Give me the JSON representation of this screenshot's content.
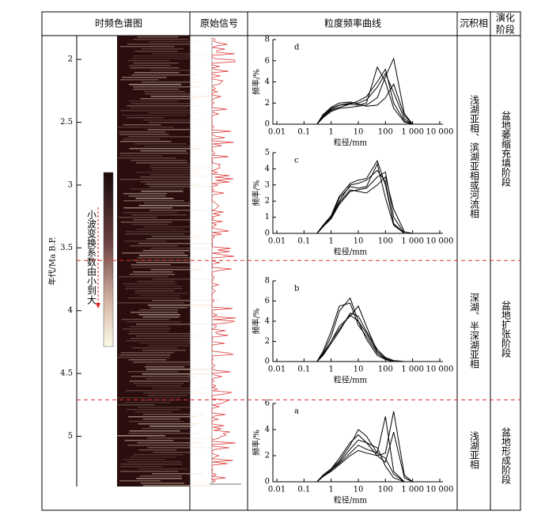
{
  "header": {
    "spectrogram": "时频色谱图",
    "signal": "原始信号",
    "grain": "粒度频率曲线",
    "facies": "沉积相",
    "stage": [
      "演化",
      "阶段"
    ]
  },
  "age_axis": {
    "label": "年代/Ma B.P.",
    "ylim": [
      1.81,
      5.4
    ],
    "yticks": [
      2,
      2.5,
      3,
      3.5,
      4,
      4.5,
      5
    ],
    "boundaries": [
      3.6,
      4.71
    ]
  },
  "colorbar_label": "小波变换系数由小到大",
  "facies": [
    "浅湖亚相、滨湖亚相或河流相",
    "深湖、半深湖亚相",
    "浅湖亚相"
  ],
  "stages": [
    "盆地萎缩充填阶段",
    "盆地扩张阶段",
    "盆地形成阶段"
  ],
  "chart_data": [
    {
      "type": "line",
      "label": "d",
      "xlabel": "粒径/mm",
      "ylabel": "频率/%",
      "log_x": true,
      "xlim": [
        0.01,
        10000
      ],
      "xticks": [
        0.01,
        0.1,
        1,
        10,
        100,
        {
          "value": 1000,
          "label": "1 000"
        },
        {
          "value": 10000,
          "label": "10 000"
        }
      ],
      "ylim": [
        0,
        8
      ],
      "yticks": [
        0,
        2,
        4,
        6,
        8
      ],
      "x": [
        0.3,
        0.5,
        1,
        2,
        5,
        10,
        20,
        50,
        100,
        200,
        500,
        1000
      ],
      "series": [
        {
          "color": "#000000",
          "values": [
            0,
            0.8,
            1.5,
            1.8,
            1.9,
            1.8,
            2.0,
            5.4,
            4.0,
            1.5,
            0.2,
            0
          ]
        },
        {
          "color": "#000000",
          "values": [
            0,
            0.7,
            1.3,
            1.6,
            1.9,
            2.2,
            2.6,
            4.0,
            5.2,
            2.0,
            0.3,
            0
          ]
        },
        {
          "color": "#000000",
          "values": [
            0,
            0.6,
            1.2,
            1.5,
            1.6,
            1.7,
            1.8,
            2.5,
            4.5,
            6.2,
            1.0,
            0
          ]
        },
        {
          "color": "#000000",
          "values": [
            0,
            0.9,
            1.6,
            2.0,
            2.1,
            1.9,
            1.7,
            1.8,
            2.5,
            3.8,
            0.8,
            0
          ]
        },
        {
          "color": "#000000",
          "values": [
            0,
            0.8,
            1.4,
            1.8,
            2.0,
            2.0,
            2.3,
            3.5,
            4.8,
            3.0,
            0.5,
            0
          ]
        }
      ]
    },
    {
      "type": "line",
      "label": "c",
      "xlabel": "粒径/mm",
      "ylabel": "频率/%",
      "log_x": true,
      "xlim": [
        0.01,
        10000
      ],
      "xticks": [
        0.01,
        0.1,
        1,
        10,
        100,
        {
          "value": 1000,
          "label": "1 000"
        },
        {
          "value": 10000,
          "label": "10 000"
        }
      ],
      "ylim": [
        0,
        5
      ],
      "yticks": [
        0,
        1,
        2,
        3,
        4,
        5
      ],
      "x": [
        0.3,
        0.5,
        1,
        2,
        5,
        10,
        20,
        50,
        100,
        200,
        500,
        1000
      ],
      "series": [
        {
          "color": "#000000",
          "values": [
            0,
            0.5,
            1.0,
            2.2,
            2.9,
            2.8,
            2.9,
            4.3,
            2.2,
            0.5,
            0,
            0
          ]
        },
        {
          "color": "#000000",
          "values": [
            0,
            0.4,
            1.0,
            2.0,
            3.0,
            3.1,
            3.3,
            3.9,
            3.2,
            0.6,
            0,
            0
          ]
        },
        {
          "color": "#000000",
          "values": [
            0,
            0.4,
            0.9,
            1.8,
            2.6,
            2.7,
            2.8,
            3.5,
            3.8,
            1.0,
            0,
            0
          ]
        },
        {
          "color": "#000000",
          "values": [
            0,
            0.5,
            1.1,
            2.3,
            3.1,
            3.3,
            3.4,
            4.5,
            3.0,
            0.6,
            0,
            0
          ]
        },
        {
          "color": "#000000",
          "values": [
            0,
            0.4,
            1.0,
            1.9,
            2.7,
            2.6,
            2.5,
            3.0,
            3.5,
            1.5,
            0.1,
            0
          ]
        }
      ]
    },
    {
      "type": "line",
      "label": "b",
      "xlabel": "粒径/mm",
      "ylabel": "频率/%",
      "log_x": true,
      "xlim": [
        0.01,
        10000
      ],
      "xticks": [
        0.01,
        0.1,
        1,
        10,
        100,
        {
          "value": 1000,
          "label": "1 000"
        },
        {
          "value": 10000,
          "label": "10 000"
        }
      ],
      "ylim": [
        0,
        8
      ],
      "yticks": [
        0,
        2,
        4,
        6,
        8
      ],
      "x": [
        0.3,
        0.5,
        1,
        2,
        5,
        10,
        20,
        50,
        100,
        200,
        500,
        1000
      ],
      "series": [
        {
          "color": "#000000",
          "values": [
            0,
            1.0,
            3.0,
            5.5,
            5.8,
            3.6,
            2.5,
            0.8,
            0.2,
            0,
            0,
            0
          ]
        },
        {
          "color": "#000000",
          "values": [
            0,
            0.8,
            2.5,
            5.0,
            6.3,
            4.0,
            2.2,
            0.6,
            0.2,
            0,
            0,
            0
          ]
        },
        {
          "color": "#000000",
          "values": [
            0,
            0.7,
            2.0,
            3.5,
            4.5,
            5.5,
            3.5,
            1.0,
            0.3,
            0,
            0,
            0
          ]
        },
        {
          "color": "#000000",
          "values": [
            0,
            0.6,
            1.8,
            3.0,
            4.8,
            4.5,
            3.0,
            1.2,
            0.4,
            0.1,
            0,
            0
          ]
        },
        {
          "color": "#000000",
          "values": [
            0,
            0.7,
            2.0,
            3.2,
            4.6,
            4.0,
            2.8,
            1.0,
            0.3,
            0,
            0,
            0
          ]
        }
      ]
    },
    {
      "type": "line",
      "label": "a",
      "xlabel": "粒径/mm",
      "ylabel": "频率/%",
      "log_x": true,
      "xlim": [
        0.01,
        10000
      ],
      "xticks": [
        0.01,
        0.1,
        1,
        10,
        100,
        {
          "value": 1000,
          "label": "1 000"
        },
        {
          "value": 10000,
          "label": "10 000"
        }
      ],
      "ylim": [
        0,
        6
      ],
      "yticks": [
        0,
        2,
        4,
        6
      ],
      "x": [
        0.3,
        0.5,
        1,
        2,
        5,
        10,
        20,
        50,
        100,
        200,
        500,
        1000
      ],
      "series": [
        {
          "color": "#000000",
          "values": [
            0,
            0.5,
            1.0,
            1.6,
            2.8,
            4.0,
            3.5,
            2.2,
            1.8,
            0.6,
            0,
            0
          ]
        },
        {
          "color": "#000000",
          "values": [
            0,
            0.4,
            0.9,
            1.4,
            2.2,
            2.8,
            2.5,
            2.2,
            5.0,
            0.8,
            0,
            0
          ]
        },
        {
          "color": "#000000",
          "values": [
            0,
            0.4,
            0.8,
            1.3,
            2.0,
            2.4,
            2.2,
            2.0,
            2.2,
            5.4,
            0.5,
            0
          ]
        },
        {
          "color": "#000000",
          "values": [
            0,
            0.5,
            1.0,
            1.8,
            3.0,
            3.6,
            3.0,
            2.0,
            1.5,
            3.8,
            0.3,
            0
          ]
        },
        {
          "color": "#000000",
          "values": [
            0,
            0.4,
            0.9,
            1.5,
            2.5,
            3.2,
            3.0,
            2.6,
            1.2,
            0.3,
            0,
            0
          ]
        }
      ]
    }
  ]
}
